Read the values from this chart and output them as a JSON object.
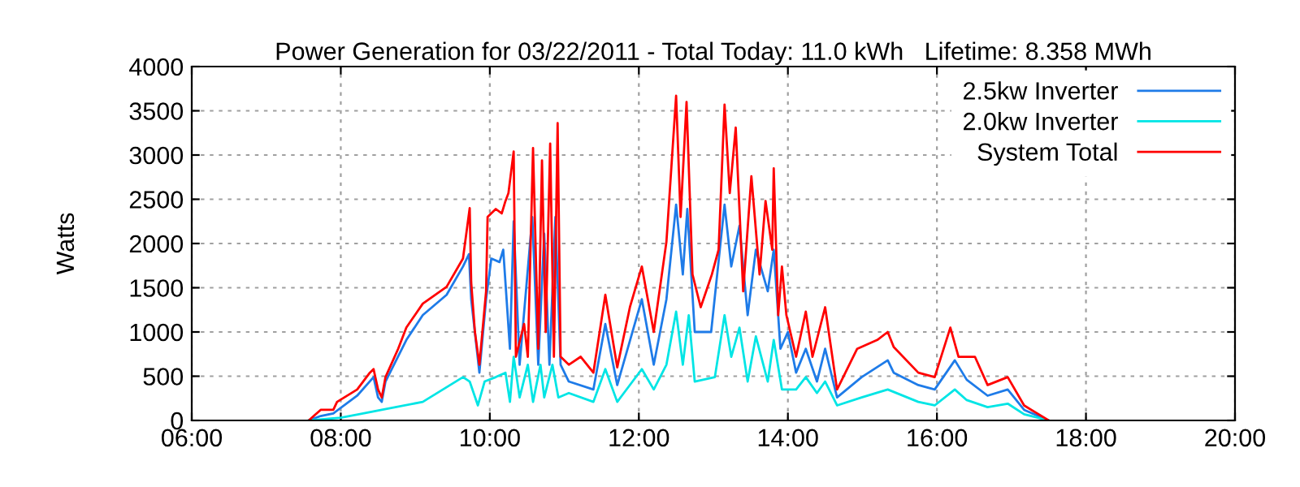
{
  "chart_data": {
    "type": "line",
    "title": "Power Generation for 03/22/2011 - Total Today: 11.0 kWh   Lifetime: 8.358 MWh",
    "ylabel": "Watts",
    "xlim": [
      6,
      20
    ],
    "ylim": [
      0,
      4000
    ],
    "xticks": [
      {
        "value": 6,
        "label": "06:00"
      },
      {
        "value": 8,
        "label": "08:00"
      },
      {
        "value": 10,
        "label": "10:00"
      },
      {
        "value": 12,
        "label": "12:00"
      },
      {
        "value": 14,
        "label": "14:00"
      },
      {
        "value": 16,
        "label": "16:00"
      },
      {
        "value": 18,
        "label": "18:00"
      },
      {
        "value": 20,
        "label": "20:00"
      }
    ],
    "yticks": [
      0,
      500,
      1000,
      1500,
      2000,
      2500,
      3000,
      3500,
      4000
    ],
    "grid": true,
    "legend": "top right",
    "line_style": "solid",
    "series": [
      {
        "name": "2.5kw Inverter",
        "color": "#1e7be8",
        "x": [
          7.57,
          7.73,
          7.9,
          8.22,
          8.44,
          8.5,
          8.55,
          8.6,
          8.88,
          9.1,
          9.42,
          9.64,
          9.72,
          9.75,
          9.86,
          9.95,
          10.02,
          10.13,
          10.18,
          10.27,
          10.32,
          10.4,
          10.57,
          10.65,
          10.73,
          10.8,
          10.88,
          10.95,
          11.06,
          11.39,
          11.55,
          11.71,
          12.04,
          12.2,
          12.37,
          12.5,
          12.59,
          12.65,
          12.75,
          12.97,
          13.15,
          13.24,
          13.35,
          13.46,
          13.57,
          13.73,
          13.81,
          13.9,
          14.0,
          14.11,
          14.24,
          14.39,
          14.5,
          14.66,
          14.99,
          15.34,
          15.42,
          15.75,
          15.97,
          16.24,
          16.4,
          16.68,
          16.95,
          17.17,
          17.5
        ],
        "values": [
          0,
          50,
          80,
          280,
          490,
          260,
          210,
          440,
          910,
          1190,
          1420,
          1740,
          1880,
          1370,
          540,
          1370,
          1830,
          1790,
          1930,
          810,
          2250,
          630,
          2300,
          630,
          2110,
          630,
          2300,
          630,
          440,
          350,
          1090,
          400,
          1370,
          630,
          1370,
          2440,
          1650,
          2390,
          1000,
          1000,
          2440,
          1740,
          2200,
          1190,
          1930,
          1460,
          1930,
          810,
          1000,
          540,
          810,
          440,
          810,
          260,
          490,
          680,
          540,
          400,
          350,
          680,
          460,
          280,
          350,
          120,
          0
        ]
      },
      {
        "name": "2.0kw Inverter",
        "color": "#00e5e5",
        "x": [
          7.57,
          8.0,
          8.55,
          9.1,
          9.64,
          9.73,
          9.84,
          9.93,
          10.08,
          10.21,
          10.27,
          10.32,
          10.4,
          10.51,
          10.58,
          10.68,
          10.73,
          10.84,
          10.92,
          11.06,
          11.39,
          11.55,
          11.71,
          12.04,
          12.2,
          12.37,
          12.5,
          12.59,
          12.67,
          12.75,
          13.02,
          13.15,
          13.24,
          13.35,
          13.46,
          13.57,
          13.73,
          13.81,
          13.92,
          14.11,
          14.24,
          14.39,
          14.5,
          14.66,
          14.99,
          15.34,
          15.75,
          15.97,
          16.24,
          16.4,
          16.68,
          16.95,
          17.17,
          17.5
        ],
        "values": [
          0,
          30,
          120,
          210,
          490,
          440,
          170,
          440,
          490,
          540,
          210,
          720,
          260,
          630,
          210,
          630,
          260,
          630,
          260,
          310,
          210,
          580,
          210,
          580,
          350,
          630,
          1230,
          630,
          1190,
          440,
          490,
          1190,
          720,
          1050,
          440,
          950,
          440,
          910,
          350,
          350,
          490,
          310,
          440,
          170,
          260,
          350,
          210,
          170,
          350,
          230,
          150,
          190,
          70,
          0
        ]
      },
      {
        "name": "System Total",
        "color": "#ff0000",
        "x": [
          7.57,
          7.73,
          7.9,
          7.95,
          8.22,
          8.39,
          8.44,
          8.5,
          8.55,
          8.6,
          8.77,
          8.88,
          9.1,
          9.42,
          9.64,
          9.73,
          9.75,
          9.8,
          9.86,
          9.95,
          9.97,
          10.08,
          10.16,
          10.21,
          10.25,
          10.32,
          10.35,
          10.46,
          10.51,
          10.58,
          10.65,
          10.7,
          10.75,
          10.81,
          10.86,
          10.91,
          10.95,
          11.06,
          11.22,
          11.39,
          11.55,
          11.71,
          11.88,
          12.04,
          12.2,
          12.37,
          12.5,
          12.56,
          12.64,
          12.72,
          12.83,
          12.98,
          13.07,
          13.15,
          13.22,
          13.3,
          13.4,
          13.51,
          13.62,
          13.7,
          13.79,
          13.81,
          13.87,
          13.92,
          13.98,
          14.11,
          14.24,
          14.33,
          14.5,
          14.66,
          14.93,
          15.2,
          15.34,
          15.42,
          15.75,
          15.97,
          16.18,
          16.29,
          16.51,
          16.68,
          16.95,
          17.17,
          17.5
        ],
        "values": [
          0,
          120,
          120,
          210,
          350,
          540,
          580,
          350,
          260,
          490,
          810,
          1050,
          1320,
          1510,
          1830,
          2400,
          1560,
          1000,
          630,
          1460,
          2300,
          2390,
          2340,
          2480,
          2570,
          3040,
          720,
          1090,
          720,
          3080,
          810,
          2940,
          1000,
          3130,
          720,
          3360,
          720,
          630,
          720,
          540,
          1420,
          600,
          1280,
          1740,
          1000,
          2020,
          3670,
          2300,
          3600,
          1650,
          1280,
          1650,
          1930,
          3570,
          2570,
          3310,
          1460,
          2760,
          1650,
          2480,
          1930,
          2850,
          1190,
          1740,
          1190,
          720,
          1230,
          720,
          1280,
          350,
          810,
          910,
          1000,
          830,
          540,
          490,
          1050,
          720,
          720,
          400,
          490,
          170,
          0
        ]
      }
    ]
  }
}
